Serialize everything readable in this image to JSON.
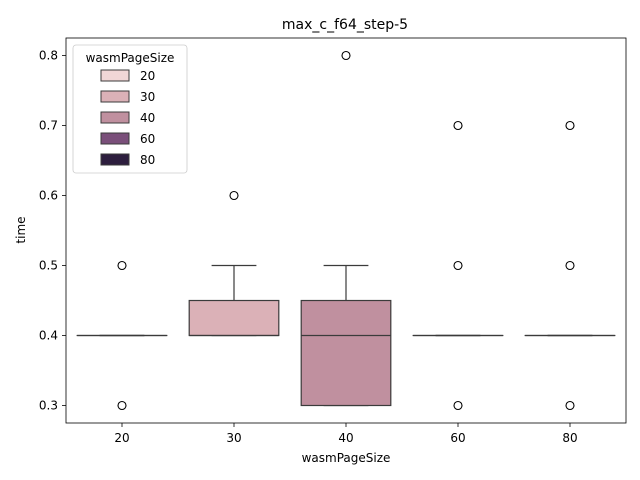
{
  "chart_data": {
    "type": "box",
    "title": "max_c_f64_step-5",
    "xlabel": "wasmPageSize",
    "ylabel": "time",
    "ylim": [
      0.275,
      0.825
    ],
    "yticks": [
      "0.3",
      "0.4",
      "0.5",
      "0.6",
      "0.7",
      "0.8"
    ],
    "grid": false,
    "legend": {
      "title": "wasmPageSize",
      "placement": "top-left",
      "entries": [
        {
          "label": "20",
          "color": "#f1d6d6"
        },
        {
          "label": "30",
          "color": "#dbb1b7"
        },
        {
          "label": "40",
          "color": "#c0909f"
        },
        {
          "label": "60",
          "color": "#7a4f7a"
        },
        {
          "label": "80",
          "color": "#2d1e3e"
        }
      ]
    },
    "categories": [
      "20",
      "30",
      "40",
      "60",
      "80"
    ],
    "boxes": [
      {
        "category": "20",
        "color": "#f1d6d6",
        "q1": 0.4,
        "median": 0.4,
        "q3": 0.4,
        "whisker_low": 0.4,
        "whisker_high": 0.4,
        "outliers": [
          0.5,
          0.3
        ]
      },
      {
        "category": "30",
        "color": "#dbb1b7",
        "q1": 0.4,
        "median": 0.4,
        "q3": 0.45,
        "whisker_low": 0.4,
        "whisker_high": 0.5,
        "outliers": [
          0.6
        ]
      },
      {
        "category": "40",
        "color": "#c0909f",
        "q1": 0.3,
        "median": 0.4,
        "q3": 0.45,
        "whisker_low": 0.3,
        "whisker_high": 0.5,
        "outliers": [
          0.8
        ]
      },
      {
        "category": "60",
        "color": "#7a4f7a",
        "q1": 0.4,
        "median": 0.4,
        "q3": 0.4,
        "whisker_low": 0.4,
        "whisker_high": 0.4,
        "outliers": [
          0.7,
          0.5,
          0.3
        ]
      },
      {
        "category": "80",
        "color": "#2d1e3e",
        "q1": 0.4,
        "median": 0.4,
        "q3": 0.4,
        "whisker_low": 0.4,
        "whisker_high": 0.4,
        "outliers": [
          0.7,
          0.5,
          0.3
        ]
      }
    ]
  }
}
